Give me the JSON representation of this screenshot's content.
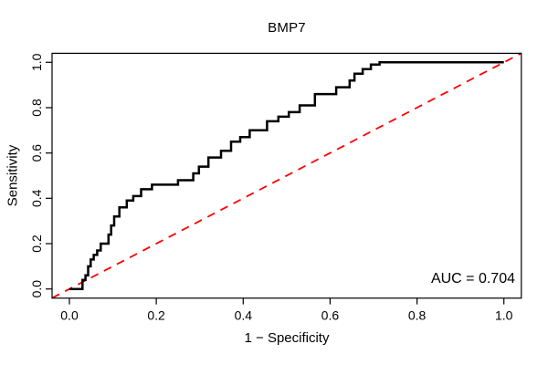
{
  "title": "BMP7",
  "annotation_label": "AUC = 0.704",
  "colors": {
    "roc_curve": "#000000",
    "diagonal_line": "#ff0000",
    "axis": "#000000",
    "background": "#ffffff"
  },
  "chart_data": {
    "type": "line",
    "subtype": "roc-step-curve",
    "title": "BMP7",
    "xlabel": "1 − Specificity",
    "ylabel": "Sensitivity",
    "xlim": [
      -0.04,
      1.04
    ],
    "ylim": [
      -0.04,
      1.04
    ],
    "x_ticks": [
      0.0,
      0.2,
      0.4,
      0.6,
      0.8,
      1.0
    ],
    "y_ticks": [
      0.0,
      0.2,
      0.4,
      0.6,
      0.8,
      1.0
    ],
    "grid": false,
    "legend": "none",
    "auc": 0.704,
    "annotation": {
      "text": "AUC = 0.704",
      "anchor": "bottom-right"
    },
    "series": [
      {
        "name": "chance-diagonal",
        "style": "dashed",
        "color": "#ff0000",
        "width": 1.8,
        "points": [
          [
            -0.04,
            -0.04
          ],
          [
            1.04,
            1.04
          ]
        ]
      },
      {
        "name": "roc-curve",
        "style": "solid",
        "color": "#000000",
        "width": 2.5,
        "points": [
          [
            0.0,
            0.0
          ],
          [
            0.03,
            0.0
          ],
          [
            0.03,
            0.04
          ],
          [
            0.037,
            0.04
          ],
          [
            0.037,
            0.06
          ],
          [
            0.043,
            0.06
          ],
          [
            0.043,
            0.1
          ],
          [
            0.049,
            0.1
          ],
          [
            0.049,
            0.13
          ],
          [
            0.056,
            0.13
          ],
          [
            0.056,
            0.15
          ],
          [
            0.064,
            0.15
          ],
          [
            0.064,
            0.17
          ],
          [
            0.072,
            0.17
          ],
          [
            0.072,
            0.2
          ],
          [
            0.09,
            0.2
          ],
          [
            0.09,
            0.24
          ],
          [
            0.096,
            0.24
          ],
          [
            0.096,
            0.28
          ],
          [
            0.103,
            0.28
          ],
          [
            0.103,
            0.32
          ],
          [
            0.115,
            0.32
          ],
          [
            0.115,
            0.36
          ],
          [
            0.132,
            0.36
          ],
          [
            0.132,
            0.39
          ],
          [
            0.147,
            0.39
          ],
          [
            0.147,
            0.41
          ],
          [
            0.165,
            0.41
          ],
          [
            0.165,
            0.44
          ],
          [
            0.19,
            0.44
          ],
          [
            0.19,
            0.46
          ],
          [
            0.25,
            0.46
          ],
          [
            0.25,
            0.48
          ],
          [
            0.285,
            0.48
          ],
          [
            0.285,
            0.51
          ],
          [
            0.298,
            0.51
          ],
          [
            0.298,
            0.54
          ],
          [
            0.32,
            0.54
          ],
          [
            0.32,
            0.58
          ],
          [
            0.349,
            0.58
          ],
          [
            0.349,
            0.61
          ],
          [
            0.372,
            0.61
          ],
          [
            0.372,
            0.65
          ],
          [
            0.393,
            0.65
          ],
          [
            0.393,
            0.67
          ],
          [
            0.415,
            0.67
          ],
          [
            0.415,
            0.7
          ],
          [
            0.455,
            0.7
          ],
          [
            0.455,
            0.74
          ],
          [
            0.481,
            0.74
          ],
          [
            0.481,
            0.76
          ],
          [
            0.505,
            0.76
          ],
          [
            0.505,
            0.78
          ],
          [
            0.53,
            0.78
          ],
          [
            0.53,
            0.81
          ],
          [
            0.565,
            0.81
          ],
          [
            0.565,
            0.86
          ],
          [
            0.614,
            0.86
          ],
          [
            0.614,
            0.89
          ],
          [
            0.645,
            0.89
          ],
          [
            0.645,
            0.92
          ],
          [
            0.656,
            0.92
          ],
          [
            0.656,
            0.95
          ],
          [
            0.675,
            0.95
          ],
          [
            0.675,
            0.97
          ],
          [
            0.694,
            0.97
          ],
          [
            0.694,
            0.99
          ],
          [
            0.714,
            0.99
          ],
          [
            0.714,
            1.0
          ],
          [
            1.0,
            1.0
          ]
        ]
      }
    ]
  }
}
